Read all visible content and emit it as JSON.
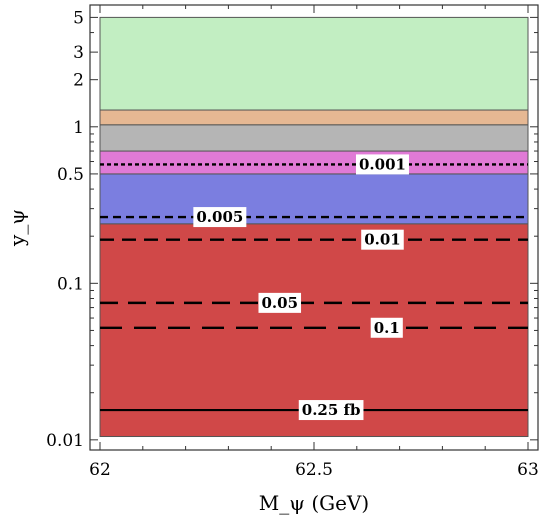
{
  "chart_data": {
    "type": "area",
    "title": "",
    "xlabel": "M_ψ (GeV)",
    "ylabel": "y_ψ",
    "xlim": [
      62,
      63
    ],
    "ylim": [
      0.009,
      6.0
    ],
    "y_scale": "log",
    "grid": false,
    "x_ticks": [
      {
        "value": 62,
        "label": "62"
      },
      {
        "value": 62.5,
        "label": "62.5"
      },
      {
        "value": 63,
        "label": "63"
      }
    ],
    "y_ticks": [
      {
        "value": 0.01,
        "label": "0.01"
      },
      {
        "value": 0.1,
        "label": "0.1"
      },
      {
        "value": 0.5,
        "label": "0.5"
      },
      {
        "value": 1,
        "label": "1"
      },
      {
        "value": 2,
        "label": "2"
      },
      {
        "value": 3,
        "label": "3"
      },
      {
        "value": 5,
        "label": "5"
      }
    ],
    "regions": [
      {
        "y_low": 0.0105,
        "y_high": 0.24,
        "color": "#d04848"
      },
      {
        "y_low": 0.24,
        "y_high": 0.5,
        "color": "#7b7ee0"
      },
      {
        "y_low": 0.5,
        "y_high": 0.7,
        "color": "#e07ad6"
      },
      {
        "y_low": 0.7,
        "y_high": 1.03,
        "color": "#b5b5b5"
      },
      {
        "y_low": 1.03,
        "y_high": 1.28,
        "color": "#e6b893"
      },
      {
        "y_low": 1.28,
        "y_high": 5.0,
        "color": "#c2eec2"
      }
    ],
    "contours": [
      {
        "label": "0.001",
        "y": 0.575,
        "label_x": 62.66,
        "dash": "4,3",
        "width": 2.4
      },
      {
        "label": "0.005",
        "y": 0.265,
        "label_x": 62.28,
        "dash": "8,5",
        "width": 2.4
      },
      {
        "label": "0.01",
        "y": 0.19,
        "label_x": 62.66,
        "dash": "14,8",
        "width": 2.4
      },
      {
        "label": "0.05",
        "y": 0.075,
        "label_x": 62.42,
        "dash": "18,10",
        "width": 2.4
      },
      {
        "label": "0.1",
        "y": 0.052,
        "label_x": 62.67,
        "dash": "22,12",
        "width": 2.4
      },
      {
        "label": "0.25 fb",
        "y": 0.0155,
        "label_x": 62.54,
        "dash": "",
        "width": 2.2
      }
    ]
  }
}
